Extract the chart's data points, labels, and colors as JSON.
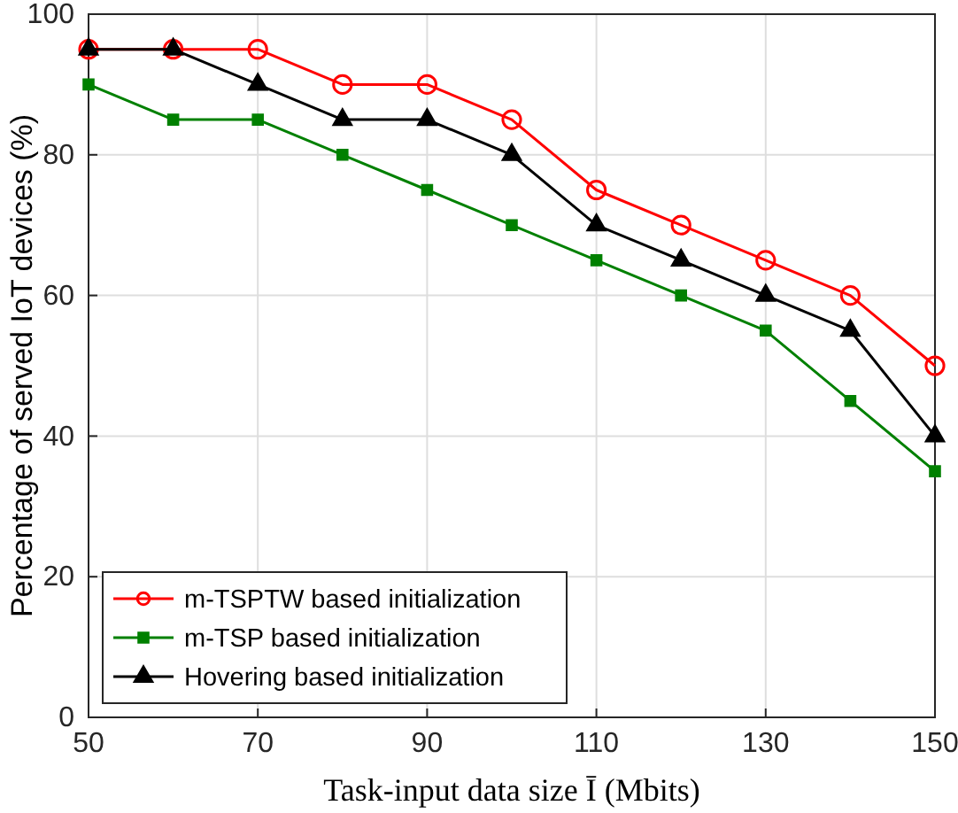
{
  "chart_data": {
    "type": "line",
    "xlabel": "Task-input data size Ī (Mbits)",
    "ylabel": "Percentage of served IoT devices (%)",
    "x": [
      50,
      60,
      70,
      80,
      90,
      100,
      110,
      120,
      130,
      140,
      150
    ],
    "series": [
      {
        "name": "m-TSPTW based initialization",
        "color": "#ff0000",
        "marker": "circle",
        "values": [
          95,
          95,
          95,
          90,
          90,
          85,
          75,
          70,
          65,
          60,
          50
        ]
      },
      {
        "name": "m-TSP based initialization",
        "color": "#008000",
        "marker": "square",
        "values": [
          90,
          85,
          85,
          80,
          75,
          70,
          65,
          60,
          55,
          45,
          35
        ]
      },
      {
        "name": "Hovering based initialization",
        "color": "#000000",
        "marker": "triangle",
        "values": [
          95,
          95,
          90,
          85,
          85,
          80,
          70,
          65,
          60,
          55,
          40
        ]
      }
    ],
    "xlim": [
      50,
      150
    ],
    "xticks": [
      50,
      70,
      90,
      110,
      130,
      150
    ],
    "ylim": [
      0,
      100
    ],
    "yticks": [
      0,
      20,
      40,
      60,
      80,
      100
    ],
    "grid": true,
    "legend": "bottom left",
    "line_style": "solid"
  }
}
